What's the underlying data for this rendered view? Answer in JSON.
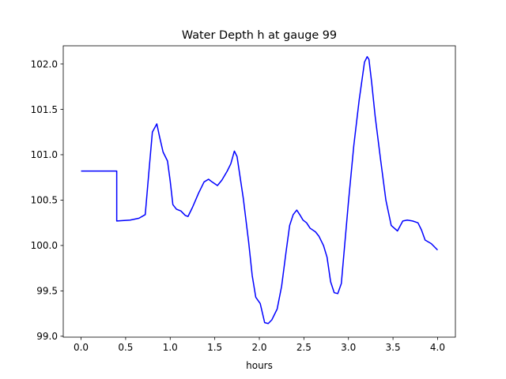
{
  "chart_data": {
    "type": "line",
    "title": "Water Depth h at gauge 99",
    "xlabel": "hours",
    "ylabel": "",
    "xlim": [
      -0.2,
      4.2
    ],
    "ylim": [
      98.99,
      102.2
    ],
    "xticks": [
      "0.0",
      "0.5",
      "1.0",
      "1.5",
      "2.0",
      "2.5",
      "3.0",
      "3.5",
      "4.0"
    ],
    "yticks": [
      "99.0",
      "99.5",
      "100.0",
      "100.5",
      "101.0",
      "101.5",
      "102.0"
    ],
    "grid": false,
    "series": [
      {
        "color": "#0000ff",
        "x": [
          0.0,
          0.2,
          0.4,
          0.4,
          0.55,
          0.65,
          0.72,
          0.76,
          0.8,
          0.85,
          0.88,
          0.92,
          0.97,
          1.0,
          1.03,
          1.07,
          1.12,
          1.17,
          1.2,
          1.25,
          1.32,
          1.38,
          1.43,
          1.47,
          1.53,
          1.58,
          1.64,
          1.68,
          1.72,
          1.75,
          1.82,
          1.88,
          1.92,
          1.96,
          2.01,
          2.06,
          2.1,
          2.14,
          2.2,
          2.25,
          2.3,
          2.34,
          2.38,
          2.42,
          2.46,
          2.49,
          2.53,
          2.57,
          2.63,
          2.67,
          2.72,
          2.76,
          2.8,
          2.84,
          2.88,
          2.92,
          3.0,
          3.06,
          3.12,
          3.18,
          3.21,
          3.23,
          3.26,
          3.3,
          3.36,
          3.42,
          3.48,
          3.55,
          3.61,
          3.66,
          3.72,
          3.78,
          3.82,
          3.86,
          3.93,
          4.0
        ],
        "y": [
          100.82,
          100.82,
          100.82,
          100.27,
          100.28,
          100.3,
          100.34,
          100.8,
          101.25,
          101.34,
          101.2,
          101.03,
          100.93,
          100.71,
          100.45,
          100.4,
          100.38,
          100.33,
          100.32,
          100.42,
          100.58,
          100.7,
          100.73,
          100.7,
          100.66,
          100.72,
          100.82,
          100.9,
          101.04,
          100.98,
          100.52,
          100.04,
          99.67,
          99.43,
          99.36,
          99.15,
          99.14,
          99.18,
          99.3,
          99.55,
          99.93,
          100.22,
          100.34,
          100.39,
          100.33,
          100.28,
          100.25,
          100.19,
          100.15,
          100.1,
          100.0,
          99.87,
          99.6,
          99.48,
          99.47,
          99.58,
          100.48,
          101.1,
          101.6,
          102.02,
          102.08,
          102.05,
          101.8,
          101.42,
          100.95,
          100.5,
          100.22,
          100.16,
          100.27,
          100.28,
          100.27,
          100.25,
          100.17,
          100.06,
          100.02,
          99.95
        ]
      }
    ]
  }
}
